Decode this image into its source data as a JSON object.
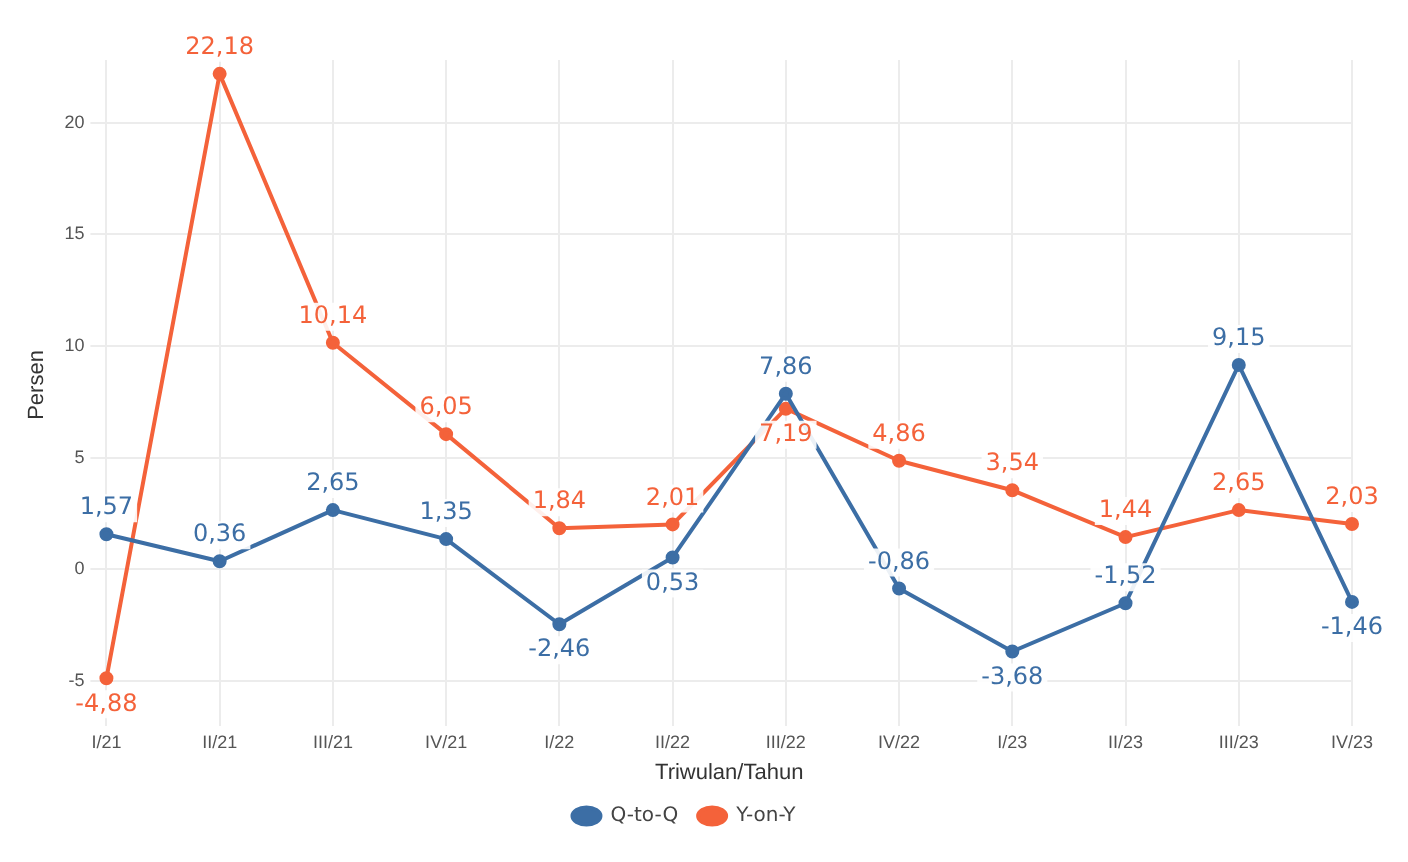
{
  "chart_data": {
    "type": "line",
    "xlabel": "Triwulan/Tahun",
    "ylabel": "Persen",
    "categories": [
      "I/21",
      "II/21",
      "III/21",
      "IV/21",
      "I/22",
      "II/22",
      "III/22",
      "IV/22",
      "I/23",
      "II/23",
      "III/23",
      "IV/23"
    ],
    "series": [
      {
        "name": "Q-to-Q",
        "color": "#3c6ea5",
        "values": [
          1.57,
          0.36,
          2.65,
          1.35,
          -2.46,
          0.53,
          7.86,
          -0.86,
          -3.68,
          -1.52,
          9.15,
          -1.46
        ],
        "value_labels": [
          "1,57",
          "0,36",
          "2,65",
          "1,35",
          "-2,46",
          "0,53",
          "7,86",
          "-0,86",
          "-3,68",
          "-1,52",
          "9,15",
          "-1,46"
        ]
      },
      {
        "name": "Y-on-Y",
        "color": "#f4623a",
        "values": [
          -4.88,
          22.18,
          10.14,
          6.05,
          1.84,
          2.01,
          7.19,
          4.86,
          3.54,
          1.44,
          2.65,
          2.03
        ],
        "value_labels": [
          "-4,88",
          "22,18",
          "10,14",
          "6,05",
          "1,84",
          "2,01",
          "7,19",
          "4,86",
          "3,54",
          "1,44",
          "2,65",
          "2,03"
        ]
      }
    ],
    "ylim": [
      -6.3,
      22.8
    ],
    "yticks": [
      -5,
      0,
      5,
      10,
      15,
      20
    ],
    "grid": true,
    "legend": "bottom",
    "marker": "circle",
    "line_style": "solid"
  }
}
